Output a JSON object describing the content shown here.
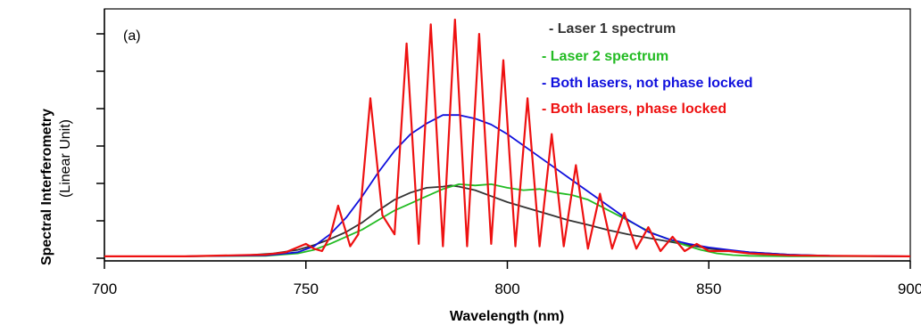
{
  "chart_data": {
    "type": "line",
    "panel_label": "(a)",
    "xlabel": "Wavelength (nm)",
    "ylabel": "Spectral Interferometry",
    "ylabel_unit": "(Linear Unit)",
    "xlim": [
      700,
      900
    ],
    "ylim": [
      0,
      1
    ],
    "x_ticks": [
      700,
      750,
      800,
      850,
      900
    ],
    "y_tick_labels_shown": false,
    "grid": false,
    "legend_position": "top-right",
    "series": [
      {
        "name": "- Laser 1 spectrum",
        "color": "#333333",
        "x": [
          700,
          720,
          735,
          742,
          748,
          752,
          756,
          760,
          764,
          768,
          772,
          776,
          780,
          784,
          786,
          788,
          792,
          796,
          800,
          805,
          810,
          815,
          820,
          825,
          830,
          835,
          840,
          845,
          850,
          860,
          870,
          880,
          900
        ],
        "y": [
          0.008,
          0.008,
          0.012,
          0.02,
          0.035,
          0.055,
          0.08,
          0.11,
          0.15,
          0.2,
          0.245,
          0.275,
          0.295,
          0.3,
          0.305,
          0.3,
          0.285,
          0.26,
          0.235,
          0.21,
          0.185,
          0.16,
          0.14,
          0.118,
          0.1,
          0.085,
          0.07,
          0.055,
          0.04,
          0.025,
          0.015,
          0.01,
          0.008
        ]
      },
      {
        "name": "- Laser 2 spectrum",
        "color": "#22bb22",
        "x": [
          700,
          720,
          740,
          748,
          752,
          756,
          760,
          764,
          768,
          772,
          776,
          780,
          784,
          788,
          792,
          796,
          800,
          804,
          808,
          812,
          816,
          820,
          824,
          828,
          832,
          836,
          840,
          844,
          848,
          852,
          856,
          860,
          870,
          880,
          900
        ],
        "y": [
          0.008,
          0.008,
          0.01,
          0.02,
          0.035,
          0.06,
          0.09,
          0.12,
          0.16,
          0.2,
          0.23,
          0.26,
          0.29,
          0.31,
          0.305,
          0.31,
          0.295,
          0.285,
          0.29,
          0.275,
          0.265,
          0.245,
          0.21,
          0.175,
          0.14,
          0.105,
          0.08,
          0.055,
          0.035,
          0.02,
          0.013,
          0.01,
          0.008,
          0.008,
          0.008
        ]
      },
      {
        "name": "- Both lasers, not phase locked",
        "color": "#1010dd",
        "x": [
          700,
          720,
          740,
          748,
          752,
          756,
          760,
          764,
          768,
          772,
          776,
          780,
          784,
          788,
          792,
          796,
          800,
          805,
          810,
          815,
          820,
          825,
          830,
          835,
          840,
          845,
          850,
          855,
          860,
          870,
          880,
          900
        ],
        "y": [
          0.008,
          0.008,
          0.012,
          0.025,
          0.05,
          0.1,
          0.17,
          0.26,
          0.36,
          0.45,
          0.52,
          0.565,
          0.6,
          0.6,
          0.585,
          0.56,
          0.52,
          0.46,
          0.4,
          0.34,
          0.28,
          0.22,
          0.16,
          0.11,
          0.08,
          0.06,
          0.045,
          0.035,
          0.025,
          0.015,
          0.01,
          0.008
        ]
      },
      {
        "name": "- Both lasers, phase locked",
        "color": "#ee1111",
        "x": [
          700,
          720,
          740,
          745,
          750,
          752,
          754,
          756,
          758,
          761,
          763,
          766,
          769,
          772,
          775,
          778,
          781,
          784,
          787,
          790,
          793,
          796,
          799,
          802,
          805,
          808,
          811,
          814,
          817,
          820,
          823,
          826,
          829,
          832,
          835,
          838,
          841,
          844,
          847,
          850,
          855,
          860,
          870,
          880,
          900
        ],
        "y": [
          0.008,
          0.008,
          0.015,
          0.025,
          0.06,
          0.04,
          0.03,
          0.09,
          0.22,
          0.05,
          0.1,
          0.67,
          0.18,
          0.1,
          0.9,
          0.06,
          0.98,
          0.05,
          1.0,
          0.05,
          0.94,
          0.06,
          0.83,
          0.05,
          0.67,
          0.05,
          0.52,
          0.05,
          0.39,
          0.04,
          0.27,
          0.04,
          0.19,
          0.04,
          0.13,
          0.03,
          0.09,
          0.03,
          0.06,
          0.03,
          0.03,
          0.02,
          0.012,
          0.01,
          0.008
        ]
      }
    ]
  }
}
